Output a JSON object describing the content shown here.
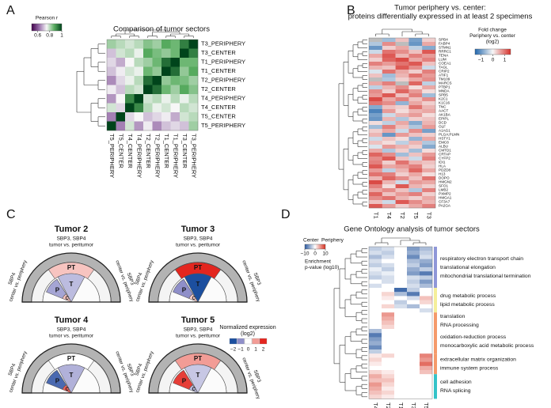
{
  "chart_data": [
    {
      "type": "heatmap",
      "panel": "A",
      "title": "Comparison of tumor sectors",
      "row_labels": [
        "T3_PERIPHERY",
        "T3_CENTER",
        "T1_PERIPHERY",
        "T1_CENTER",
        "T2_PERIPHERY",
        "T2_CENTER",
        "T4_PERIPHERY",
        "T4_CENTER",
        "T5_CENTER",
        "T5_PERIPHERY"
      ],
      "row_label_colors": [
        "#111",
        "#111",
        "#e8702a",
        "#e8702a",
        "#111",
        "#111",
        "#111",
        "#111",
        "#111",
        "#111"
      ],
      "col_labels": [
        "T5_PERIPHERY",
        "T5_CENTER",
        "T4_CENTER",
        "T4_PERIPHERY",
        "T2_CENTER",
        "T2_PERIPHERY",
        "T1_CENTER",
        "T1_PERIPHERY",
        "T3_CENTER",
        "T3_PERIPHERY"
      ],
      "col_label_colors": [
        "#111",
        "#111",
        "#111",
        "#111",
        "#111",
        "#111",
        "#e8702a",
        "#e8702a",
        "#111",
        "#111"
      ],
      "values": [
        [
          0.82,
          0.8,
          0.78,
          0.8,
          0.84,
          0.82,
          0.88,
          0.86,
          0.93,
          1
        ],
        [
          0.7,
          0.78,
          0.8,
          0.76,
          0.88,
          0.85,
          0.83,
          0.86,
          1,
          0.93
        ],
        [
          0.72,
          0.68,
          0.75,
          0.8,
          0.82,
          0.86,
          0.95,
          1,
          0.86,
          0.86
        ],
        [
          0.7,
          0.74,
          0.78,
          0.76,
          0.86,
          0.83,
          1,
          0.95,
          0.83,
          0.88
        ],
        [
          0.65,
          0.72,
          0.76,
          0.8,
          0.95,
          1,
          0.83,
          0.86,
          0.85,
          0.82
        ],
        [
          0.74,
          0.7,
          0.8,
          0.78,
          1,
          0.95,
          0.86,
          0.82,
          0.88,
          0.84
        ],
        [
          0.66,
          0.75,
          0.92,
          1,
          0.78,
          0.8,
          0.76,
          0.8,
          0.76,
          0.8
        ],
        [
          0.78,
          0.72,
          1,
          0.92,
          0.8,
          0.76,
          0.78,
          0.75,
          0.8,
          0.78
        ],
        [
          0.64,
          1,
          0.72,
          0.75,
          0.7,
          0.72,
          0.74,
          0.68,
          0.78,
          0.8
        ],
        [
          1,
          0.64,
          0.78,
          0.66,
          0.74,
          0.65,
          0.7,
          0.72,
          0.7,
          0.82
        ]
      ],
      "colorbar": {
        "title": [
          "Pearson r"
        ],
        "lim": [
          0.5,
          1
        ],
        "ticks": [
          0.6,
          0.8,
          1
        ],
        "colors": [
          "#40004b",
          "#9970ab",
          "#f7f7f7",
          "#5aae61",
          "#00441b"
        ]
      }
    },
    {
      "type": "heatmap",
      "panel": "B",
      "title": "Tumor periphery vs. center:",
      "subtitle": "proteins differentially expressed in at least 2 specimens",
      "row_labels": [
        "SPB4",
        "FABP4",
        "STMN1",
        "RRRC1",
        "TENA",
        "LUM",
        "COEA1",
        "TAGL",
        "CRIP2",
        "ATIF1",
        "TM109",
        "MARCS",
        "PTBP1",
        "MNDA",
        "SPB5",
        "K2C1",
        "K1C16",
        "TNC",
        "AACT",
        "AK1BA",
        "EPIPL",
        "DCD",
        "OLF",
        "A1AG1",
        "PLGA;PLMN",
        "HSTY1",
        "EMC8",
        "ALBU",
        "CMTD1",
        "CRTAP",
        "CYFP2",
        "IDI1",
        "HLA",
        "PDZD8",
        "H13",
        "DOPO",
        "HMGN2",
        "SFO1",
        "LMB2",
        "PXMP2",
        "HMGA1",
        "CF3A7",
        "PA2GA"
      ],
      "col_labels": [
        "T1",
        "T4",
        "T2",
        "T5",
        "T3"
      ],
      "col_label_colors": [
        "#e8702a",
        "#111",
        "#111",
        "#111",
        "#111"
      ],
      "na_color": "#bdbdbd",
      "values": [
        [
          null,
          -0.6,
          0.4,
          -0.9,
          0.3
        ],
        [
          -0.5,
          0.8,
          null,
          -1,
          0.6
        ],
        [
          -1,
          0.3,
          0.6,
          -0.4,
          -0.8
        ],
        [
          -0.3,
          1,
          0.8,
          0.4,
          1.2
        ],
        [
          0.6,
          1.2,
          0.5,
          0.9,
          0.7
        ],
        [
          0.3,
          1.1,
          1.3,
          0.6,
          0.9
        ],
        [
          0.9,
          0.7,
          1,
          1.2,
          0.4
        ],
        [
          0.5,
          0.4,
          1.2,
          0.8,
          -0.3
        ],
        [
          -0.2,
          1,
          0.6,
          0.3,
          0.9
        ],
        [
          0.4,
          -0.6,
          0.5,
          1,
          0.7
        ],
        [
          null,
          -0.5,
          0.3,
          0.6,
          0.8
        ],
        [
          0.6,
          0.9,
          null,
          1.1,
          -0.4
        ],
        [
          -0.4,
          0.5,
          0.8,
          0.2,
          0.6
        ],
        [
          0.8,
          0.3,
          1.1,
          0.7,
          0.2
        ],
        [
          0.7,
          1.2,
          0.4,
          0.9,
          -0.6
        ],
        [
          1.3,
          0.6,
          0.9,
          0.4,
          0.8
        ],
        [
          1,
          0.8,
          -0.7,
          0.6,
          0.3
        ],
        [
          -0.8,
          0.4,
          0.3,
          1,
          0.5
        ],
        [
          -1.2,
          0.7,
          0.2,
          0.5,
          0.6
        ],
        [
          -0.9,
          -0.3,
          0.5,
          0.7,
          0.2
        ],
        [
          -1,
          0.5,
          -0.5,
          0.3,
          0.4
        ],
        [
          0.2,
          -0.4,
          0.6,
          -0.8,
          0.5
        ],
        [
          -0.6,
          0.9,
          0.4,
          -0.5,
          0.7
        ],
        [
          0.3,
          0.6,
          -0.3,
          0.8,
          -0.9
        ],
        [
          0.5,
          -1,
          0.7,
          0.4,
          0.3
        ],
        [
          -0.3,
          0.4,
          0.2,
          -0.7,
          0.6
        ],
        [
          0.4,
          0.2,
          -0.4,
          0.5,
          -0.5
        ],
        [
          -0.2,
          0.7,
          0.5,
          0.3,
          -0.8
        ],
        [
          0.6,
          -0.5,
          0.3,
          -0.6,
          0.2
        ],
        [
          1.1,
          0.8,
          -0.6,
          0.4,
          0.7
        ],
        [
          0.8,
          1.2,
          0.4,
          -0.3,
          0.9
        ],
        [
          0.9,
          0.3,
          1,
          0.5,
          0.4
        ],
        [
          1.2,
          0.6,
          0.7,
          0.9,
          0.3
        ],
        [
          0.7,
          -0.4,
          0.5,
          1.1,
          0.6
        ],
        [
          1,
          0.9,
          0.3,
          0.6,
          0.2
        ],
        [
          0.5,
          1.1,
          0.8,
          0.4,
          1
        ],
        [
          1.3,
          0.5,
          -0.3,
          0.7,
          0.6
        ],
        [
          0.9,
          0.2,
          1.2,
          0.5,
          0.3
        ],
        [
          0.6,
          0.8,
          0.4,
          -0.5,
          0.9
        ],
        [
          1.1,
          0.4,
          0.7,
          0.9,
          0.3
        ],
        [
          0.8,
          1,
          0.5,
          0.3,
          0.6
        ],
        [
          0.4,
          -0.3,
          1.2,
          0.8,
          0.5
        ],
        [
          1.2,
          0.7,
          0.3,
          0.6,
          0.9
        ]
      ],
      "colorbar": {
        "title": [
          "Fold change",
          "Periphery vs. center",
          "(log2)"
        ],
        "lim": [
          -1.5,
          1.5
        ],
        "ticks": [
          {
            "value": -1,
            "label": "−1"
          },
          0,
          1
        ],
        "colors": [
          "#2166ac",
          "#f7f7f7",
          "#d6312b"
        ]
      }
    },
    {
      "type": "schematic",
      "panel": "C",
      "regions": [
        "PT",
        "T",
        "P",
        "C"
      ],
      "top_label": [
        "SBP3, SBP4",
        "tumor vs. peritumor"
      ],
      "left_label": [
        "SBP4",
        "center vs. periphery"
      ],
      "right_label": [
        "SBP3",
        "center vs. periphery"
      ],
      "tumors": [
        {
          "title": "Tumor 2",
          "values": [
            0.6,
            -0.6,
            -0.8,
            0.6
          ]
        },
        {
          "title": "Tumor 3",
          "values": [
            2,
            -2,
            -1,
            0.5
          ]
        },
        {
          "title": "Tumor 4",
          "values": [
            0,
            -0.7,
            -1.6,
            1.5
          ]
        },
        {
          "title": "Tumor 5",
          "values": [
            1,
            -0.5,
            1.8,
            -0.6
          ]
        }
      ],
      "legend": {
        "title": [
          "Normalized expression",
          "(log2)"
        ],
        "lim": [
          -2,
          2
        ],
        "ticks": [
          {
            "value": -2,
            "label": "−2"
          },
          {
            "value": -1,
            "label": "−1"
          },
          0,
          1,
          2
        ],
        "colors": [
          "#1c4f9f",
          "#8f8fc9",
          "#ffffff",
          "#f29c96",
          "#e3261f"
        ]
      }
    },
    {
      "type": "heatmap",
      "panel": "D",
      "title": "Gene Ontology analysis of tumor sectors",
      "col_labels": [
        "T4",
        "T2",
        "T1",
        "T3",
        "T5"
      ],
      "col_label_colors": [
        "#111",
        "#111",
        "#e8702a",
        "#111",
        "#111"
      ],
      "colorbar": {
        "end_labels": [
          "Center",
          "Periphery"
        ],
        "title": [
          "Enrichment",
          "p-value (log10)"
        ],
        "lim": [
          -10,
          10
        ],
        "ticks": [
          {
            "value": -10,
            "label": "−10"
          },
          0,
          10
        ],
        "colors": [
          "#2c5aa0",
          "#ffffff",
          "#d7301f"
        ]
      },
      "row_groups": [
        {
          "color": "#8f97d8",
          "labels": [
            "respiratory electron transport chain",
            "translational elongation",
            "mitochondrial translational termination"
          ],
          "rows": [
            [
              -3,
              -2,
              0,
              -6,
              -4
            ],
            [
              -2,
              -3,
              0,
              -5,
              -3
            ],
            [
              -4,
              -2,
              0,
              -7,
              -2
            ],
            [
              -2,
              0,
              0,
              -4,
              -5
            ],
            [
              -3,
              -2,
              0,
              -3,
              -6
            ],
            [
              -1,
              -3,
              0,
              -5,
              -3
            ],
            [
              -2,
              -1,
              0,
              -6,
              -8
            ],
            [
              -3,
              -2,
              0,
              -2,
              -3
            ],
            [
              0,
              -2,
              0,
              -3,
              -6
            ],
            [
              -2,
              0,
              0,
              -2,
              -4
            ]
          ]
        },
        {
          "color": "#f5ef9a",
          "labels": [
            "drug metabolic process",
            "lipid metabolic process"
          ],
          "rows": [
            [
              0,
              0,
              -9,
              -3,
              0
            ],
            [
              0,
              2,
              -4,
              -8,
              0
            ],
            [
              0,
              1,
              0,
              -2,
              3
            ],
            [
              0,
              0,
              -3,
              0,
              2
            ],
            [
              0,
              2,
              -2,
              -4,
              0
            ],
            [
              0,
              0,
              0,
              0,
              -2
            ]
          ]
        },
        {
          "color": "#f59a6a",
          "labels": [
            "translation",
            "RNA processing"
          ],
          "rows": [
            [
              0,
              5,
              0,
              0,
              0
            ],
            [
              0,
              4,
              0,
              0,
              0
            ],
            [
              0,
              3,
              0,
              0,
              0
            ],
            [
              0,
              2,
              0,
              0,
              0
            ]
          ]
        },
        {
          "color": "#f59a6a",
          "labels": [
            "oxidation-reduction process",
            "monocarboxylic acid metabolic process"
          ],
          "rows": [
            [
              -4,
              0,
              0,
              0,
              0
            ],
            [
              -8,
              0,
              0,
              0,
              0
            ],
            [
              -6,
              0,
              0,
              0,
              0
            ],
            [
              -5,
              0,
              0,
              0,
              0
            ],
            [
              -7,
              0,
              0,
              0,
              0
            ],
            [
              -3,
              0,
              0,
              0,
              0
            ]
          ]
        },
        {
          "color": "#f59a6a",
          "labels": [
            "extracellular matrix organization",
            "immune system process"
          ],
          "rows": [
            [
              1,
              2,
              0,
              0,
              6
            ],
            [
              2,
              0,
              0,
              0,
              5
            ],
            [
              1,
              0,
              0,
              0,
              7
            ],
            [
              0,
              0,
              0,
              0,
              4
            ],
            [
              2,
              1,
              0,
              0,
              3
            ]
          ]
        },
        {
          "color": "#35c3c8",
          "labels": [
            "cell adhesion",
            "RNA splicing"
          ],
          "rows": [
            [
              4,
              2,
              0,
              0,
              0
            ],
            [
              3,
              3,
              0,
              0,
              0
            ],
            [
              5,
              2,
              0,
              0,
              0
            ],
            [
              4,
              1,
              0,
              0,
              0
            ],
            [
              3,
              2,
              0,
              0,
              0
            ],
            [
              2,
              1,
              0,
              0,
              0
            ]
          ]
        }
      ]
    }
  ]
}
